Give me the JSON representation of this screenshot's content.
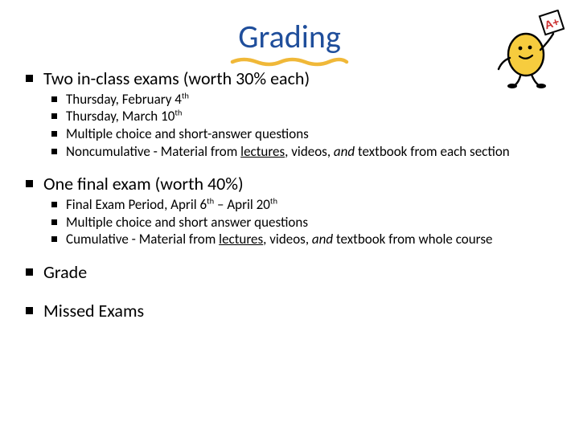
{
  "colors": {
    "title": "#1f4e9b",
    "text": "#000000",
    "background": "#ffffff",
    "squiggle": "#f0b838",
    "clip_outline": "#000000",
    "clip_body": "#f6cc3e",
    "clip_card_fill": "#ffffff",
    "clip_card_text": "#cc3030"
  },
  "title": "Grading",
  "clipart_grade": "A+",
  "sections": [
    {
      "heading": "Two in-class exams (worth 30% each)",
      "items": [
        {
          "html": "Thursday, February 4<sup>th</sup>"
        },
        {
          "html": "Thursday, March 10<sup>th</sup>"
        },
        {
          "html": "Multiple choice and short-answer questions"
        },
        {
          "html": "Noncumulative - Material from <span class=\"u\">lectures</span>, videos, <span class=\"it\">and</span> textbook from each section"
        }
      ]
    },
    {
      "heading": "One final exam (worth 40%)",
      "items": [
        {
          "html": "Final Exam Period, April 6<sup>th</sup> – April 20<sup>th</sup>"
        },
        {
          "html": "Multiple choice and short answer questions"
        },
        {
          "html": "Cumulative - Material from <span class=\"u\">lectures</span>, videos, <span class=\"it\">and</span> textbook from whole course"
        }
      ]
    },
    {
      "heading": "Grade",
      "items": []
    },
    {
      "heading": "Missed Exams",
      "items": []
    }
  ]
}
